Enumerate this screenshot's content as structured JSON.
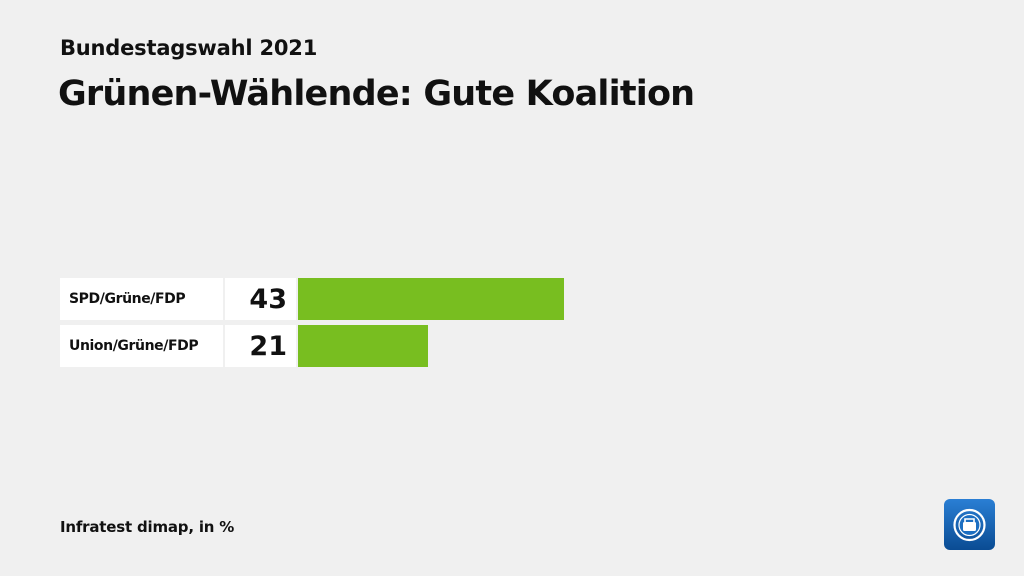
{
  "header": {
    "subtitle": "Bundestagswahl 2021",
    "title": "Grünen-Wählende: Gute Koalition"
  },
  "chart_data": {
    "type": "bar",
    "orientation": "horizontal",
    "categories": [
      "SPD/Grüne/FDP",
      "Union/Grüne/FDP"
    ],
    "values": [
      43,
      21
    ],
    "value_labels": [
      "43",
      "21"
    ],
    "unit": "%",
    "bar_color": "#78be20",
    "xlim": [
      0,
      100
    ]
  },
  "footer": {
    "source": "Infratest dimap, in %"
  },
  "logo": {
    "icon": "tagesschau-logo-icon",
    "bg_color": "#0b5cab"
  }
}
